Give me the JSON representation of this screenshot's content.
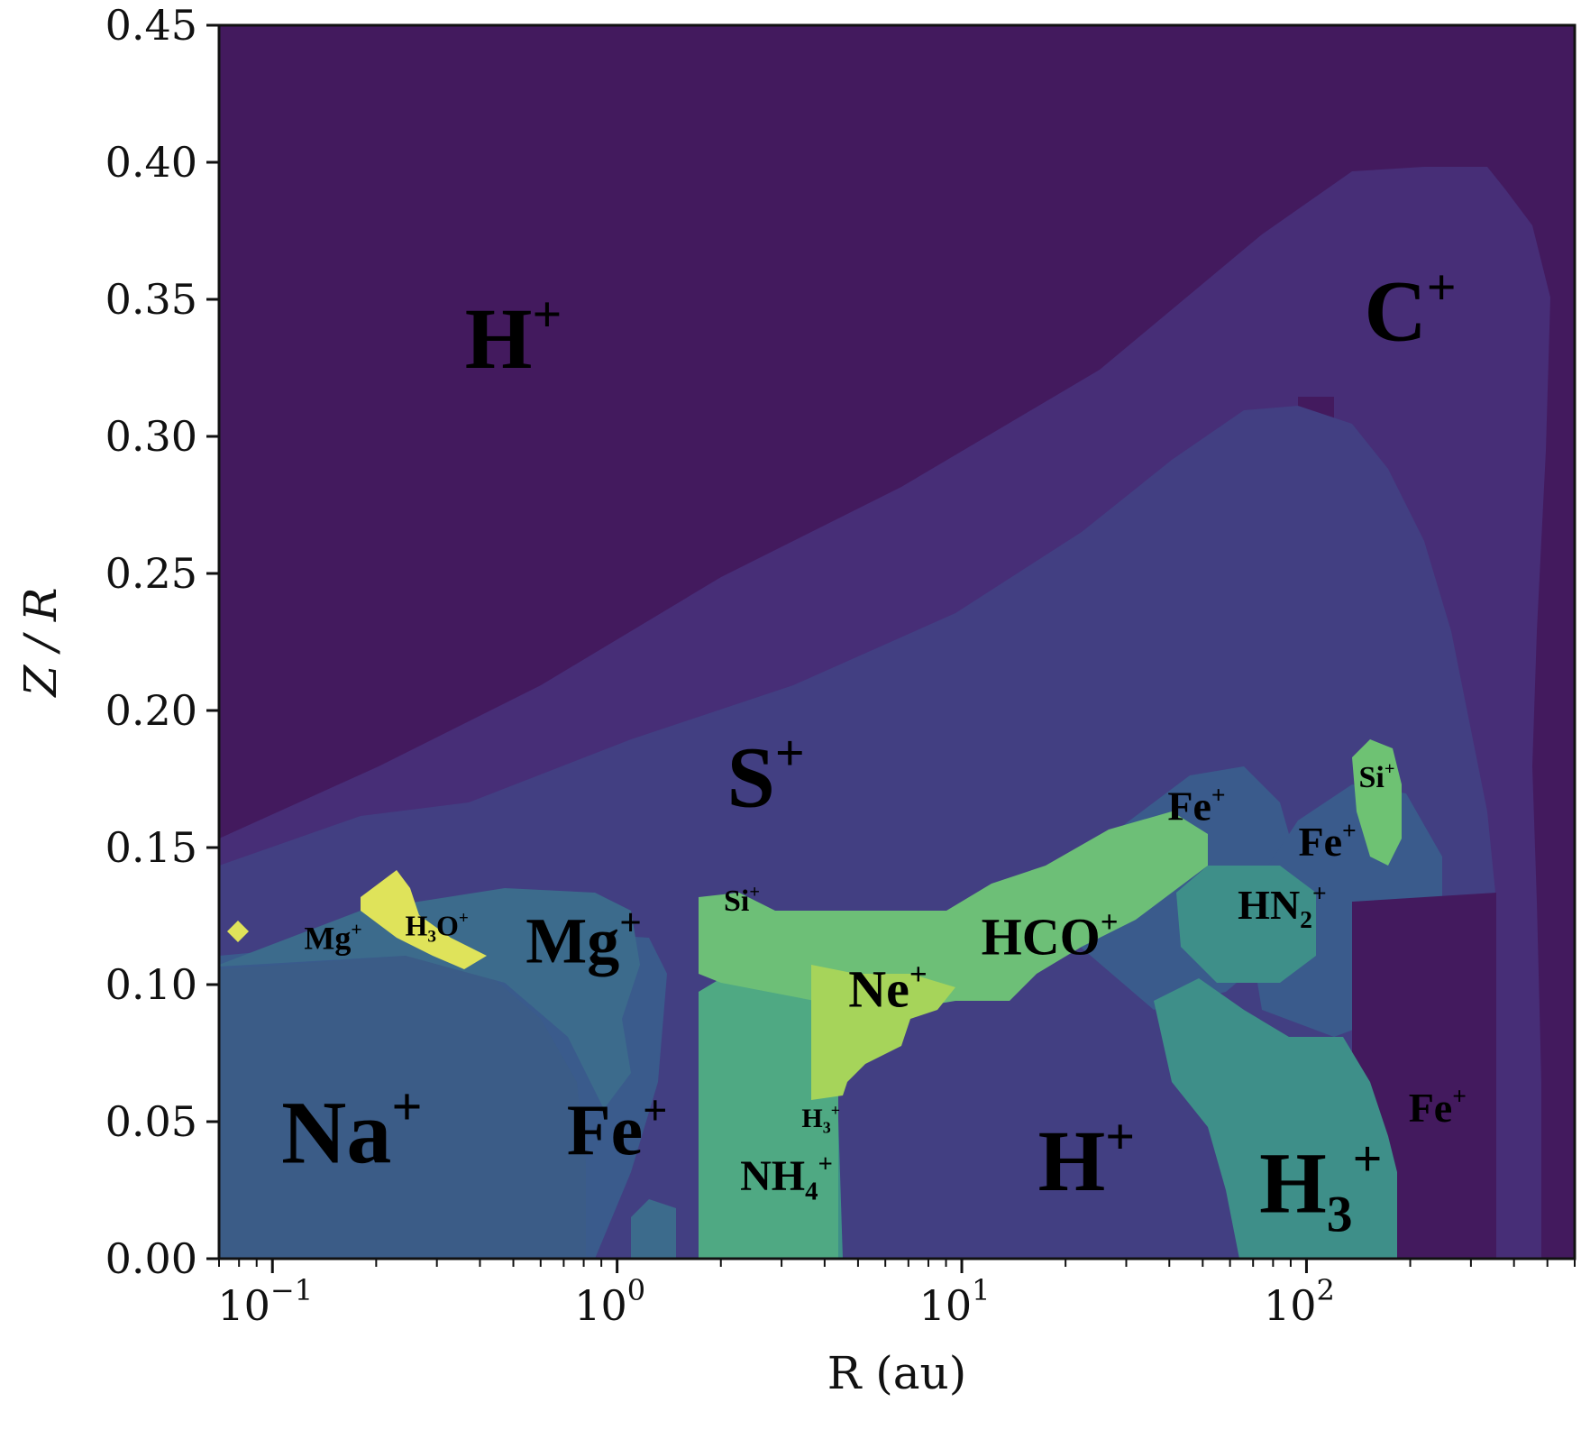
{
  "chart_data": {
    "type": "heatmap",
    "title": "",
    "xlabel": "R (au)",
    "ylabel": "Z / R",
    "x_scale": "log",
    "xlim": [
      0.07,
      600
    ],
    "ylim": [
      0,
      0.45
    ],
    "y_ticks": [
      "0.00",
      "0.05",
      "0.10",
      "0.15",
      "0.20",
      "0.25",
      "0.30",
      "0.35",
      "0.40",
      "0.45"
    ],
    "x_ticks": [
      {
        "base": "10",
        "exp": "−1",
        "value": 0.1
      },
      {
        "base": "10",
        "exp": "0",
        "value": 1
      },
      {
        "base": "10",
        "exp": "1",
        "value": 10
      },
      {
        "base": "10",
        "exp": "2",
        "value": 100
      }
    ],
    "colors": {
      "h_plus": "#431a5e",
      "c_plus": "#472e77",
      "s_plus": "#423f82",
      "fe_plus": "#3a5b8c",
      "na_plus": "#3b5c87",
      "mg_plus": "#3c6b8c",
      "h3_plus": "#3e8f89",
      "nh4_plus": "#4fa983",
      "hco_plus": "#6dbf77",
      "ne_plus": "#a6d45a",
      "h3o_plus": "#dfe35a",
      "si_plus": "#6ec273"
    },
    "labels": [
      {
        "id": "h-plus-top",
        "base": "H",
        "sub": "",
        "sup": "+",
        "R": 0.5,
        "Z": 0.325,
        "size": 96
      },
      {
        "id": "c-plus",
        "base": "C",
        "sub": "",
        "sup": "+",
        "R": 200,
        "Z": 0.335,
        "size": 96
      },
      {
        "id": "s-plus",
        "base": "S",
        "sub": "",
        "sup": "+",
        "R": 2.7,
        "Z": 0.165,
        "size": 96
      },
      {
        "id": "fe-plus-mid",
        "base": "Fe",
        "sub": "",
        "sup": "+",
        "R": 48,
        "Z": 0.16,
        "size": 46
      },
      {
        "id": "si-plus-right",
        "base": "Si",
        "sub": "",
        "sup": "+",
        "R": 160,
        "Z": 0.172,
        "size": 34
      },
      {
        "id": "fe-plus-right",
        "base": "Fe",
        "sub": "",
        "sup": "+",
        "R": 115,
        "Z": 0.147,
        "size": 46
      },
      {
        "id": "hn2-plus",
        "base": "HN",
        "sub": "2",
        "sup": "+",
        "R": 85,
        "Z": 0.124,
        "size": 46
      },
      {
        "id": "hco-plus",
        "base": "HCO",
        "sub": "",
        "sup": "+",
        "R": 18,
        "Z": 0.111,
        "size": 58
      },
      {
        "id": "si-plus-left",
        "base": "Si",
        "sub": "",
        "sup": "+",
        "R": 2.3,
        "Z": 0.127,
        "size": 34
      },
      {
        "id": "mg-plus-small",
        "base": "Mg",
        "sub": "",
        "sup": "+",
        "R": 0.15,
        "Z": 0.113,
        "size": 36
      },
      {
        "id": "h3o-plus",
        "base": "H",
        "sub": "3",
        "sup": "+",
        "R": 0.3,
        "Z": 0.118,
        "size": 32,
        "mid": "O"
      },
      {
        "id": "mg-plus-big",
        "base": "Mg",
        "sub": "",
        "sup": "+",
        "R": 0.8,
        "Z": 0.108,
        "size": 72
      },
      {
        "id": "ne-plus",
        "base": "Ne",
        "sub": "",
        "sup": "+",
        "R": 6.1,
        "Z": 0.092,
        "size": 58
      },
      {
        "id": "na-plus",
        "base": "Na",
        "sub": "",
        "sup": "+",
        "R": 0.17,
        "Z": 0.035,
        "size": 100
      },
      {
        "id": "fe-plus-left",
        "base": "Fe",
        "sub": "",
        "sup": "+",
        "R": 1.0,
        "Z": 0.038,
        "size": 80
      },
      {
        "id": "h3-plus-small",
        "base": "H",
        "sub": "3",
        "sup": "+",
        "R": 3.9,
        "Z": 0.048,
        "size": 30
      },
      {
        "id": "nh4-plus",
        "base": "NH",
        "sub": "4",
        "sup": "+",
        "R": 3.1,
        "Z": 0.025,
        "size": 48
      },
      {
        "id": "h-plus-bottom",
        "base": "H",
        "sub": "",
        "sup": "+",
        "R": 23,
        "Z": 0.025,
        "size": 96
      },
      {
        "id": "fe-plus-far",
        "base": "Fe",
        "sub": "",
        "sup": "+",
        "R": 240,
        "Z": 0.05,
        "size": 46
      },
      {
        "id": "h3-plus-big",
        "base": "H",
        "sub": "3",
        "sup": "+",
        "R": 110,
        "Z": 0.017,
        "size": 96
      }
    ]
  }
}
